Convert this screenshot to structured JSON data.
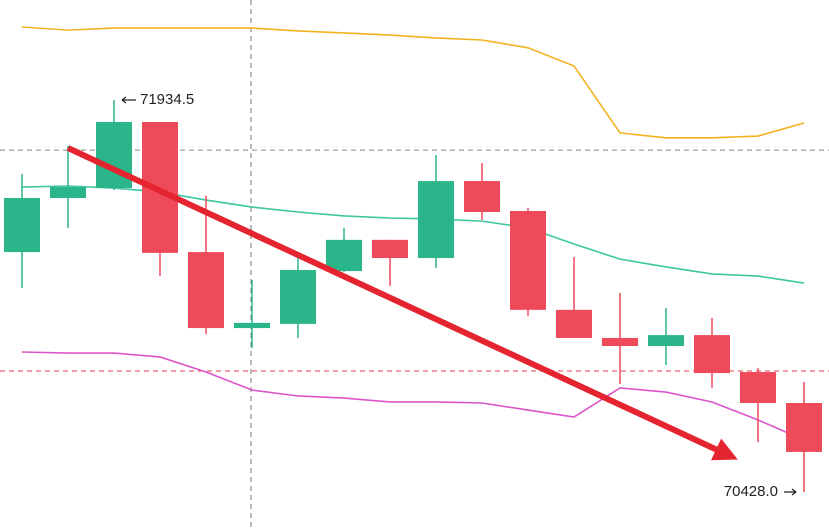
{
  "chart_data": {
    "type": "candlestick",
    "open": [
      71350,
      71558,
      71596,
      71850,
      71350,
      71058,
      71074,
      71277,
      71397,
      71327,
      71623,
      71508,
      71128,
      71020,
      70989,
      71031,
      70889,
      70770
    ],
    "high": [
      71650,
      71758,
      71934.5,
      71850,
      71566,
      71243,
      71327,
      71443,
      71397,
      71723,
      71692,
      71520,
      71331,
      71193,
      71135,
      71097,
      70905,
      70851
    ],
    "low": [
      71212,
      71443,
      71589,
      71258,
      71035,
      70981,
      71020,
      71274,
      71220,
      71289,
      71473,
      71104,
      71020,
      70843,
      70916,
      70828,
      70620,
      70428
    ],
    "close": [
      71558,
      71600,
      71850,
      71347,
      71058,
      71078,
      71281,
      71397,
      71327,
      71623,
      71504,
      71128,
      71020,
      70989,
      71031,
      70885,
      70770,
      70582
    ],
    "up_color": "#2bb58a",
    "down_color": "#ef4a5a",
    "series": [
      {
        "color": "#f4b223",
        "values": [
          72215,
          72203,
          72211,
          72211,
          72211,
          72211,
          72200,
          72192,
          72184,
          72173,
          72165,
          72135,
          72065,
          71808,
          71789,
          71789,
          71796,
          71846
        ]
      },
      {
        "color": "#3cc7a2",
        "values": [
          71600,
          71604,
          71596,
          71581,
          71550,
          71523,
          71504,
          71489,
          71481,
          71477,
          71469,
          71443,
          71381,
          71323,
          71293,
          71266,
          71258,
          71231
        ]
      },
      {
        "color": "#dc55c8",
        "values": [
          70966,
          70962,
          70962,
          70947,
          70889,
          70820,
          70797,
          70789,
          70774,
          70774,
          70770,
          70743,
          70716,
          70828,
          70812,
          70774,
          70705,
          70628
        ]
      }
    ],
    "hlines": [
      {
        "value": 71742,
        "color": "#888888"
      },
      {
        "value": 70893,
        "color": "#e0404e"
      }
    ],
    "annotations": [
      {
        "value": 71934.5,
        "label": "71934.5"
      },
      {
        "value": 70428.0,
        "label": "70428.0"
      }
    ]
  }
}
